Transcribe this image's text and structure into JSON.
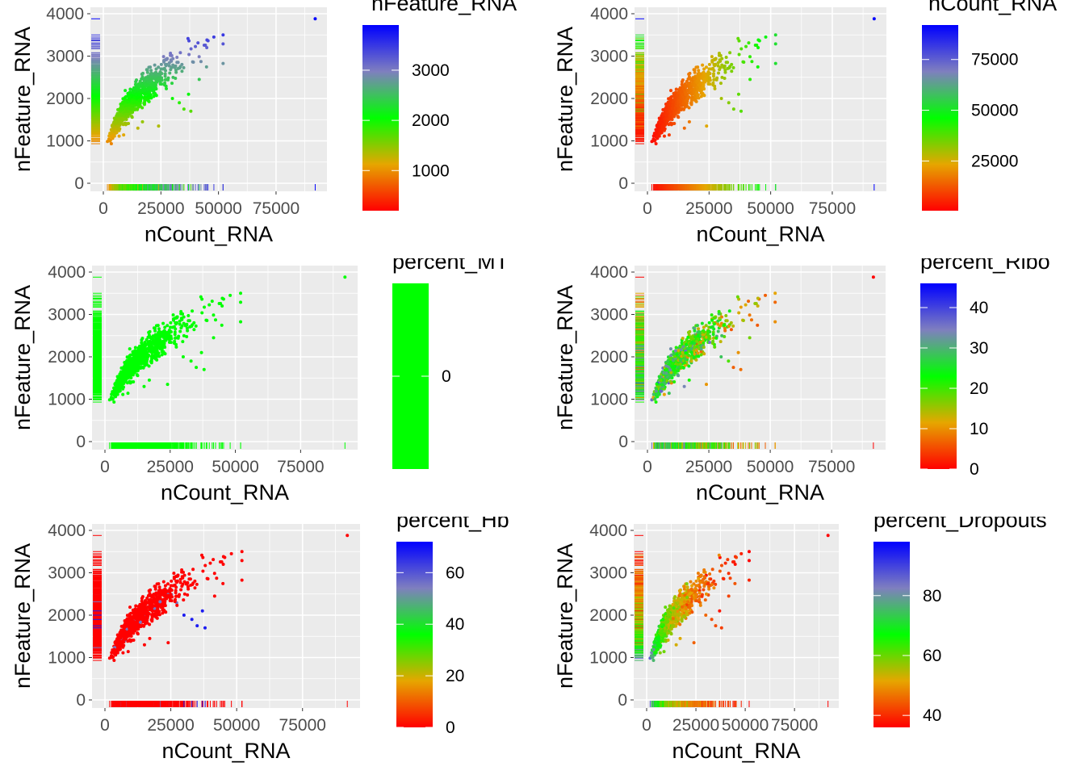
{
  "chart_data": [
    {
      "type": "scatter",
      "xlabel": "nCount_RNA",
      "ylabel": "nFeature_RNA",
      "xlim": [
        0,
        95000
      ],
      "ylim": [
        0,
        4000
      ],
      "x_ticks": [
        "0",
        "25000",
        "50000",
        "75000"
      ],
      "y_ticks": [
        "0",
        "1000",
        "2000",
        "3000",
        "4000"
      ],
      "grid": true,
      "color_by": "nFeature_RNA",
      "legend": {
        "title": "nFeature_RNA",
        "placement": "right",
        "range": [
          200,
          3900
        ],
        "ticks": [
          1000,
          2000,
          3000
        ],
        "tick_labels": [
          "1000",
          "2000",
          "3000"
        ]
      }
    },
    {
      "type": "scatter",
      "xlabel": "nCount_RNA",
      "ylabel": "nFeature_RNA",
      "xlim": [
        0,
        95000
      ],
      "ylim": [
        0,
        4000
      ],
      "x_ticks": [
        "0",
        "25000",
        "50000",
        "75000"
      ],
      "y_ticks": [
        "0",
        "1000",
        "2000",
        "3000",
        "4000"
      ],
      "grid": true,
      "color_by": "nCount_RNA",
      "legend": {
        "title": "nCount_RNA",
        "placement": "right",
        "range": [
          500,
          92000
        ],
        "ticks": [
          25000,
          50000,
          75000
        ],
        "tick_labels": [
          "25000",
          "50000",
          "75000"
        ]
      }
    },
    {
      "type": "scatter",
      "xlabel": "nCount_RNA",
      "ylabel": "nFeature_RNA",
      "xlim": [
        0,
        95000
      ],
      "ylim": [
        0,
        4000
      ],
      "x_ticks": [
        "0",
        "25000",
        "50000",
        "75000"
      ],
      "y_ticks": [
        "0",
        "1000",
        "2000",
        "3000",
        "4000"
      ],
      "grid": true,
      "color_by": "percent_MT",
      "legend": {
        "title": "percent_MT",
        "placement": "right",
        "range": [
          -1,
          1
        ],
        "ticks": [
          0
        ],
        "tick_labels": [
          "0"
        ]
      }
    },
    {
      "type": "scatter",
      "xlabel": "nCount_RNA",
      "ylabel": "nFeature_RNA",
      "xlim": [
        0,
        95000
      ],
      "ylim": [
        0,
        4000
      ],
      "x_ticks": [
        "0",
        "25000",
        "50000",
        "75000"
      ],
      "y_ticks": [
        "0",
        "1000",
        "2000",
        "3000",
        "4000"
      ],
      "grid": true,
      "color_by": "percent_Ribo",
      "legend": {
        "title": "percent_Ribo",
        "placement": "right",
        "range": [
          0,
          46
        ],
        "ticks": [
          0,
          10,
          20,
          30,
          40
        ],
        "tick_labels": [
          "0",
          "10",
          "20",
          "30",
          "40"
        ]
      }
    },
    {
      "type": "scatter",
      "xlabel": "nCount_RNA",
      "ylabel": "nFeature_RNA",
      "xlim": [
        0,
        95000
      ],
      "ylim": [
        0,
        4000
      ],
      "x_ticks": [
        "0",
        "25000",
        "50000",
        "75000"
      ],
      "y_ticks": [
        "0",
        "1000",
        "2000",
        "3000",
        "4000"
      ],
      "grid": true,
      "color_by": "percent_Hb",
      "legend": {
        "title": "percent_Hb",
        "placement": "right",
        "range": [
          0,
          72
        ],
        "ticks": [
          0,
          20,
          40,
          60
        ],
        "tick_labels": [
          "0",
          "20",
          "40",
          "60"
        ]
      }
    },
    {
      "type": "scatter",
      "xlabel": "nCount_RNA",
      "ylabel": "nFeature_RNA",
      "xlim": [
        0,
        95000
      ],
      "ylim": [
        0,
        4000
      ],
      "x_ticks": [
        "0",
        "25000",
        "50000",
        "75000"
      ],
      "y_ticks": [
        "0",
        "1000",
        "2000",
        "3000",
        "4000"
      ],
      "grid": true,
      "color_by": "percent_Dropouts",
      "legend": {
        "title": "percent_Dropouts",
        "placement": "right",
        "range": [
          36,
          98
        ],
        "ticks": [
          40,
          60,
          80
        ],
        "tick_labels": [
          "40",
          "60",
          "80"
        ]
      }
    }
  ],
  "colors": {
    "panel_background": "#ebebeb",
    "grid": "#ffffff",
    "gradient_low": "#ff0000",
    "gradient_low_mid": "#e6a600",
    "gradient_mid": "#00ff00",
    "gradient_high_mid": "#7f7fbf",
    "gradient_high": "#0000ff"
  }
}
